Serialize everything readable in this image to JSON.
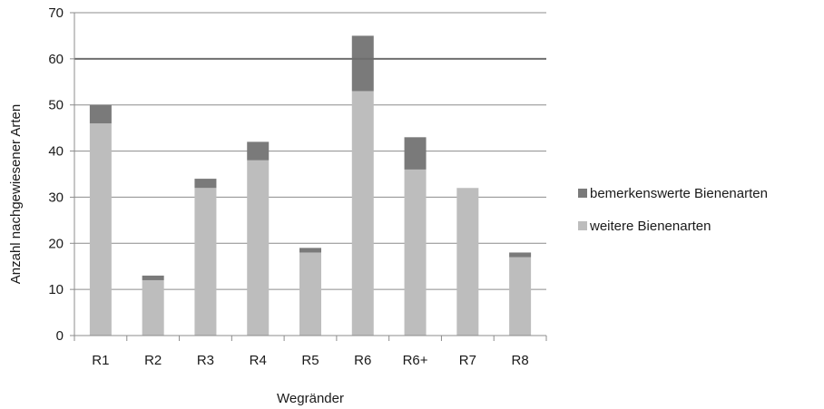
{
  "chart_data": {
    "type": "bar",
    "stacked": true,
    "categories": [
      "R1",
      "R2",
      "R3",
      "R4",
      "R5",
      "R6",
      "R6+",
      "R7",
      "R8"
    ],
    "series": [
      {
        "name": "weitere Bienenarten",
        "color": "#bdbdbd",
        "values": [
          46,
          12,
          32,
          38,
          18,
          53,
          36,
          32,
          17
        ]
      },
      {
        "name": "bemerkenswerte Bienenarten",
        "color": "#7a7a7a",
        "values": [
          4,
          1,
          2,
          4,
          1,
          12,
          7,
          0,
          1
        ]
      }
    ],
    "ylim": [
      0,
      70
    ],
    "yticks": [
      0,
      10,
      20,
      30,
      40,
      50,
      60,
      70
    ],
    "reference_line": {
      "y": 60,
      "color": "#6e6e6e"
    },
    "xlabel": "Wegränder",
    "ylabel": "Anzahl nachgewiesener Arten",
    "grid": true,
    "legend_position": "right",
    "legend_order": [
      "bemerkenswerte Bienenarten",
      "weitere Bienenarten"
    ]
  }
}
